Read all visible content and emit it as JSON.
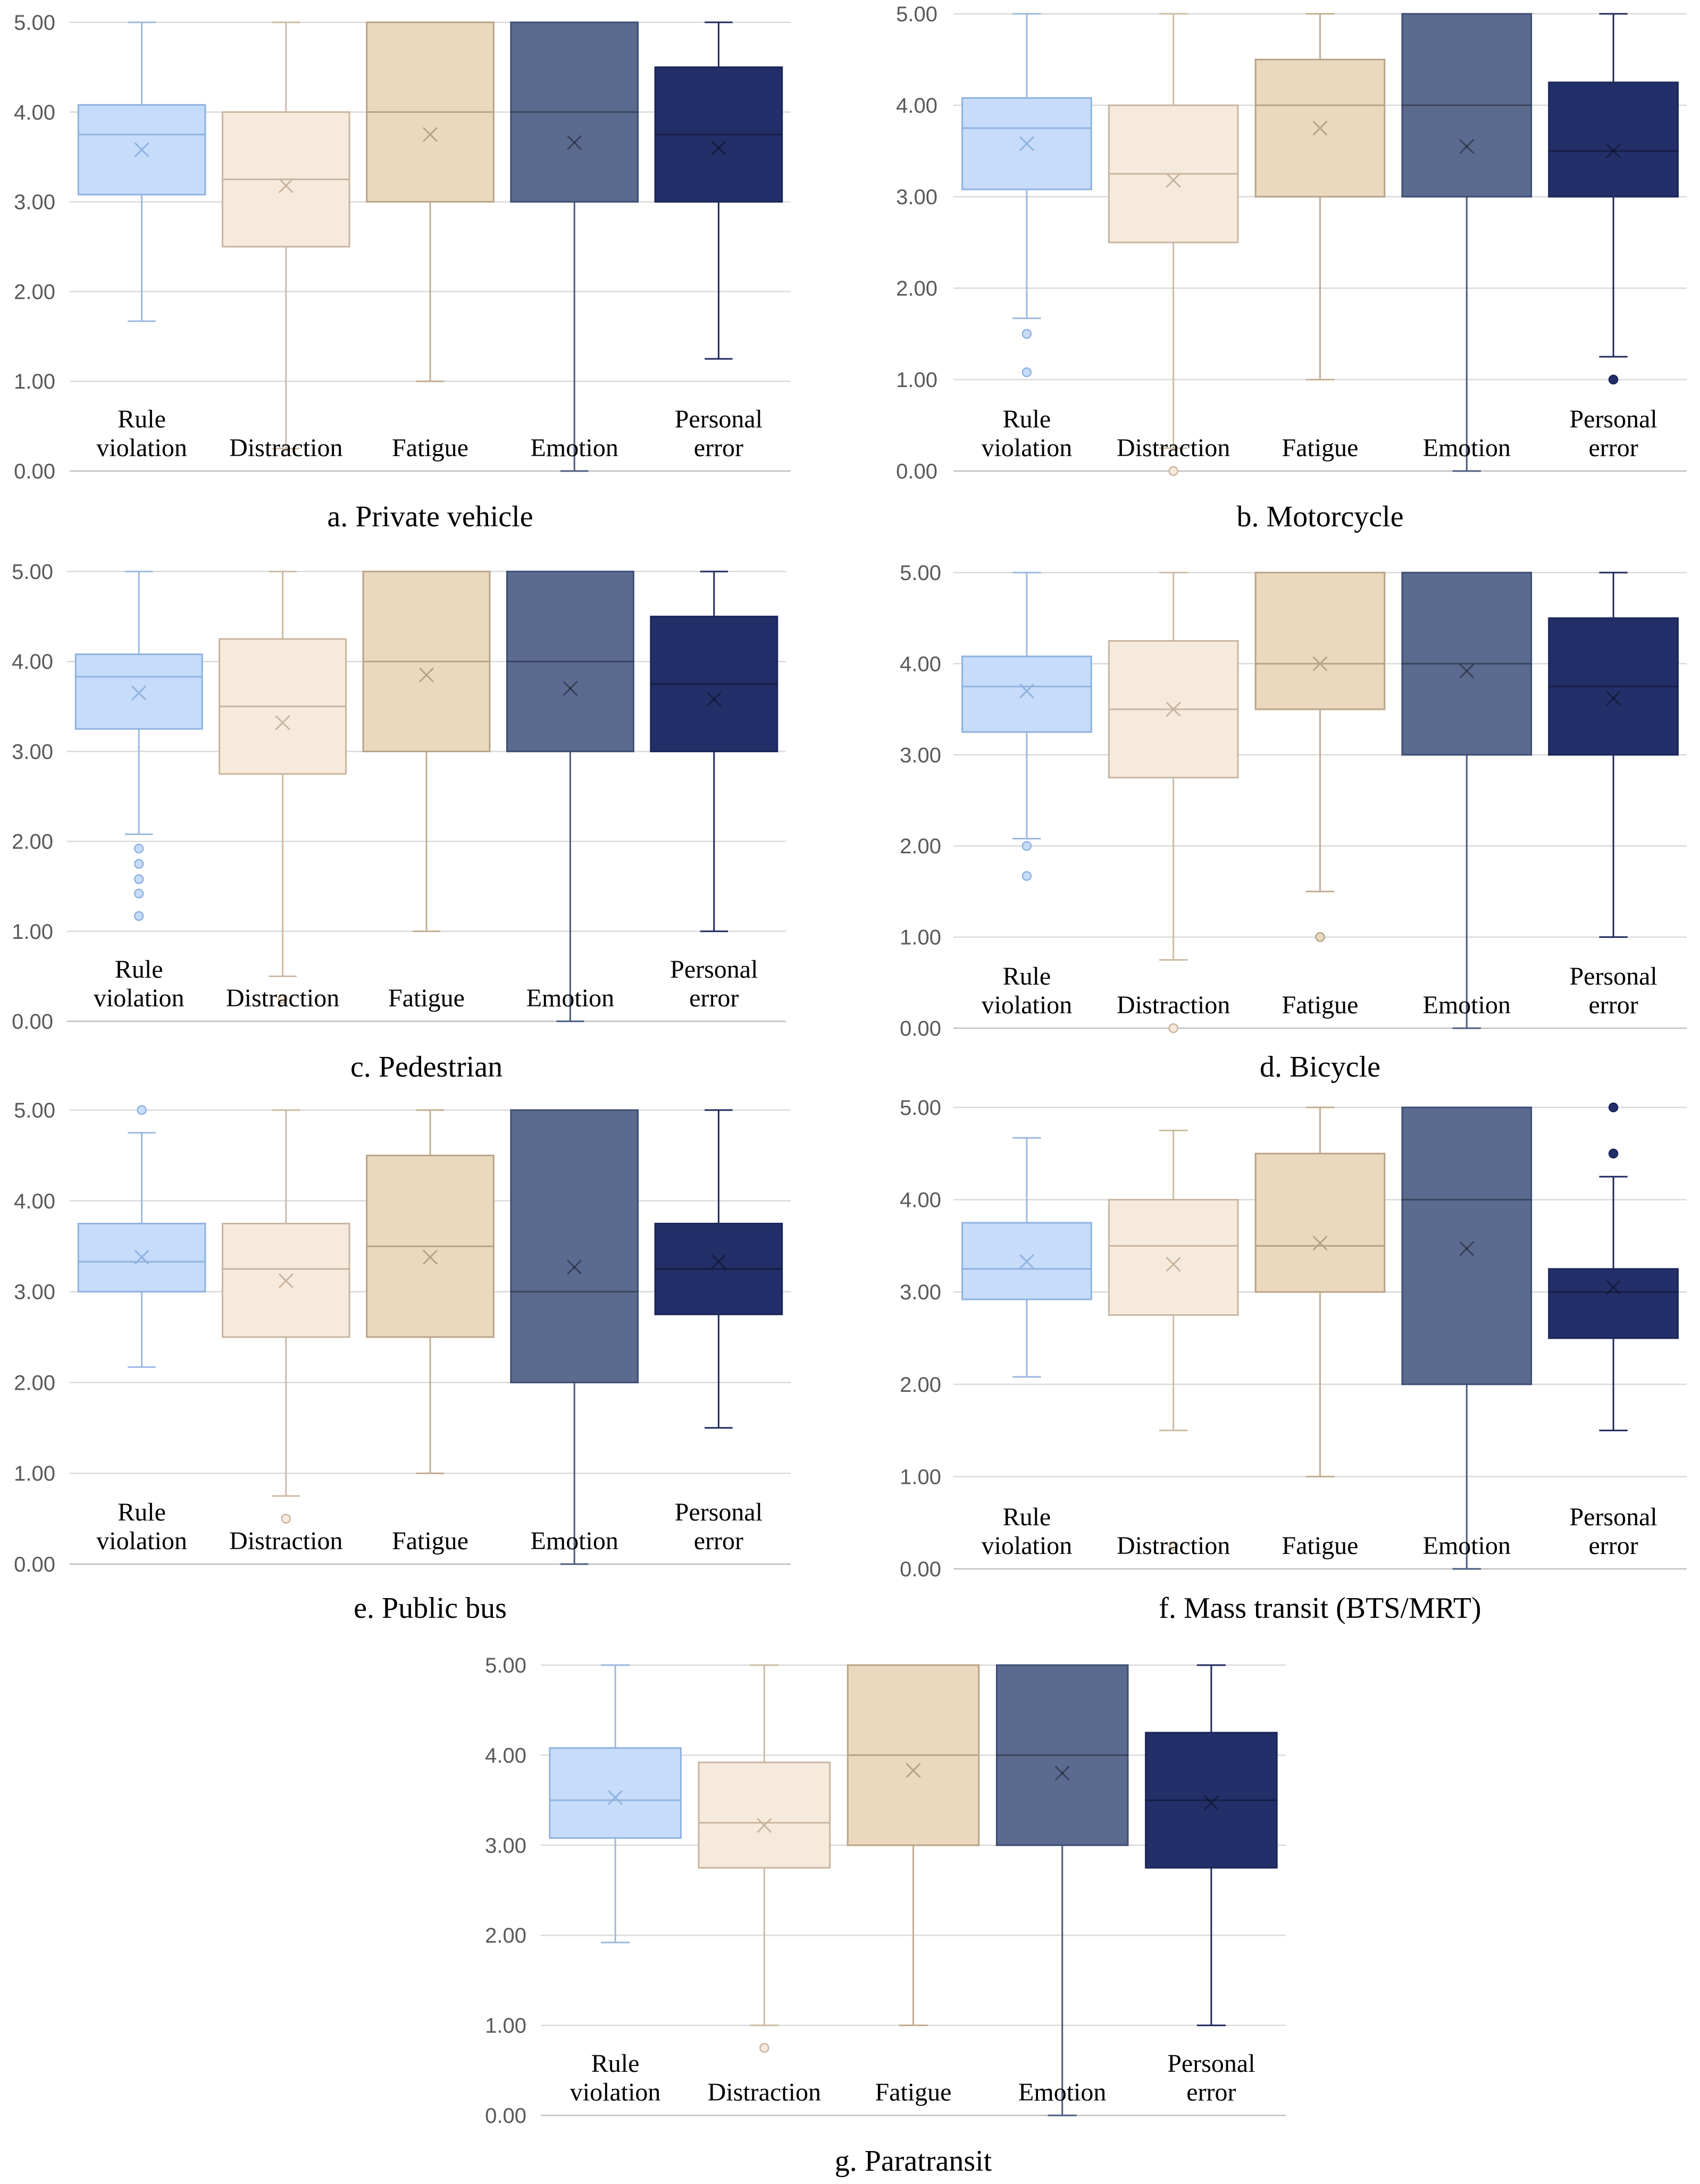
{
  "figure": {
    "categories": [
      "Rule violation",
      "Distraction",
      "Fatigue",
      "Emotion",
      "Personal error"
    ],
    "category_lines": [
      [
        "Rule",
        "violation"
      ],
      [
        "Distraction"
      ],
      [
        "Fatigue"
      ],
      [
        "Emotion"
      ],
      [
        "Personal",
        "error"
      ]
    ],
    "colors": {
      "fill": [
        "#c6dcfa",
        "#f6eadc",
        "#ead9bf",
        "#5b6a8f",
        "#232f69"
      ],
      "stroke": [
        "#8fb2e0",
        "#c9b59f",
        "#b8a386",
        "#3e4d73",
        "#1b2657"
      ],
      "whisker": [
        "#9bb8e0",
        "#cdbba5",
        "#c2ad90",
        "#4a5a80",
        "#1f2a5e"
      ]
    }
  },
  "chart_data": [
    {
      "type": "box",
      "title": "a. Private vehicle",
      "ylim": [
        0,
        5
      ],
      "yticks": [
        "0.00",
        "1.00",
        "2.00",
        "3.00",
        "4.00",
        "5.00"
      ],
      "grid": true,
      "categories": [
        "Rule violation",
        "Distraction",
        "Fatigue",
        "Emotion",
        "Personal error"
      ],
      "boxes": [
        {
          "min": 1.67,
          "q1": 3.08,
          "median": 3.75,
          "q3": 4.08,
          "max": 5.0,
          "mean": 3.58,
          "outliers": []
        },
        {
          "min": 0.25,
          "q1": 2.5,
          "median": 3.25,
          "q3": 4.0,
          "max": 5.0,
          "mean": 3.18,
          "outliers": []
        },
        {
          "min": 1.0,
          "q1": 3.0,
          "median": 4.0,
          "q3": 5.0,
          "max": 5.0,
          "mean": 3.75,
          "outliers": []
        },
        {
          "min": 0.0,
          "q1": 3.0,
          "median": 4.0,
          "q3": 5.0,
          "max": 5.0,
          "mean": 3.66,
          "outliers": []
        },
        {
          "min": 1.25,
          "q1": 3.0,
          "median": 3.75,
          "q3": 4.5,
          "max": 5.0,
          "mean": 3.6,
          "outliers": []
        }
      ]
    },
    {
      "type": "box",
      "title": "b. Motorcycle",
      "ylim": [
        0,
        5
      ],
      "yticks": [
        "0.00",
        "1.00",
        "2.00",
        "3.00",
        "4.00",
        "5.00"
      ],
      "grid": true,
      "categories": [
        "Rule violation",
        "Distraction",
        "Fatigue",
        "Emotion",
        "Personal error"
      ],
      "boxes": [
        {
          "min": 1.67,
          "q1": 3.08,
          "median": 3.75,
          "q3": 4.08,
          "max": 5.0,
          "mean": 3.58,
          "outliers": [
            1.5,
            1.08
          ]
        },
        {
          "min": 0.25,
          "q1": 2.5,
          "median": 3.25,
          "q3": 4.0,
          "max": 5.0,
          "mean": 3.18,
          "outliers": [
            0.0
          ]
        },
        {
          "min": 1.0,
          "q1": 3.0,
          "median": 4.0,
          "q3": 4.5,
          "max": 5.0,
          "mean": 3.75,
          "outliers": []
        },
        {
          "min": 0.0,
          "q1": 3.0,
          "median": 4.0,
          "q3": 5.0,
          "max": 5.0,
          "mean": 3.55,
          "outliers": []
        },
        {
          "min": 1.25,
          "q1": 3.0,
          "median": 3.5,
          "q3": 4.25,
          "max": 5.0,
          "mean": 3.5,
          "outliers": [
            1.0
          ]
        }
      ]
    },
    {
      "type": "box",
      "title": "c. Pedestrian",
      "ylim": [
        0,
        5
      ],
      "yticks": [
        "0.00",
        "1.00",
        "2.00",
        "3.00",
        "4.00",
        "5.00"
      ],
      "grid": true,
      "categories": [
        "Rule violation",
        "Distraction",
        "Fatigue",
        "Emotion",
        "Personal error"
      ],
      "boxes": [
        {
          "min": 2.08,
          "q1": 3.25,
          "median": 3.83,
          "q3": 4.08,
          "max": 5.0,
          "mean": 3.65,
          "outliers": [
            1.92,
            1.75,
            1.58,
            1.42,
            1.17
          ]
        },
        {
          "min": 0.5,
          "q1": 2.75,
          "median": 3.5,
          "q3": 4.25,
          "max": 5.0,
          "mean": 3.32,
          "outliers": [
            0.25
          ]
        },
        {
          "min": 1.0,
          "q1": 3.0,
          "median": 4.0,
          "q3": 5.0,
          "max": 5.0,
          "mean": 3.85,
          "outliers": []
        },
        {
          "min": 0.0,
          "q1": 3.0,
          "median": 4.0,
          "q3": 5.0,
          "max": 5.0,
          "mean": 3.7,
          "outliers": []
        },
        {
          "min": 1.0,
          "q1": 3.0,
          "median": 3.75,
          "q3": 4.5,
          "max": 5.0,
          "mean": 3.58,
          "outliers": []
        }
      ]
    },
    {
      "type": "box",
      "title": "d. Bicycle",
      "ylim": [
        0,
        5
      ],
      "yticks": [
        "0.00",
        "1.00",
        "2.00",
        "3.00",
        "4.00",
        "5.00"
      ],
      "grid": true,
      "categories": [
        "Rule violation",
        "Distraction",
        "Fatigue",
        "Emotion",
        "Personal error"
      ],
      "boxes": [
        {
          "min": 2.08,
          "q1": 3.25,
          "median": 3.75,
          "q3": 4.08,
          "max": 5.0,
          "mean": 3.7,
          "outliers": [
            2.0,
            1.67
          ]
        },
        {
          "min": 0.75,
          "q1": 2.75,
          "median": 3.5,
          "q3": 4.25,
          "max": 5.0,
          "mean": 3.5,
          "outliers": [
            0.0
          ]
        },
        {
          "min": 1.5,
          "q1": 3.5,
          "median": 4.0,
          "q3": 5.0,
          "max": 5.0,
          "mean": 4.0,
          "outliers": [
            1.0
          ]
        },
        {
          "min": 0.0,
          "q1": 3.0,
          "median": 4.0,
          "q3": 5.0,
          "max": 5.0,
          "mean": 3.92,
          "outliers": []
        },
        {
          "min": 1.0,
          "q1": 3.0,
          "median": 3.75,
          "q3": 4.5,
          "max": 5.0,
          "mean": 3.62,
          "outliers": []
        }
      ]
    },
    {
      "type": "box",
      "title": "e. Public bus",
      "ylim": [
        0,
        5
      ],
      "yticks": [
        "0.00",
        "1.00",
        "2.00",
        "3.00",
        "4.00",
        "5.00"
      ],
      "grid": true,
      "categories": [
        "Rule violation",
        "Distraction",
        "Fatigue",
        "Emotion",
        "Personal error"
      ],
      "boxes": [
        {
          "min": 2.17,
          "q1": 3.0,
          "median": 3.33,
          "q3": 3.75,
          "max": 4.75,
          "mean": 3.38,
          "outliers": [
            5.0
          ]
        },
        {
          "min": 0.75,
          "q1": 2.5,
          "median": 3.25,
          "q3": 3.75,
          "max": 5.0,
          "mean": 3.12,
          "outliers": [
            0.5
          ]
        },
        {
          "min": 1.0,
          "q1": 2.5,
          "median": 3.5,
          "q3": 4.5,
          "max": 5.0,
          "mean": 3.38,
          "outliers": []
        },
        {
          "min": 0.0,
          "q1": 2.0,
          "median": 3.0,
          "q3": 5.0,
          "max": 5.0,
          "mean": 3.27,
          "outliers": []
        },
        {
          "min": 1.5,
          "q1": 2.75,
          "median": 3.25,
          "q3": 3.75,
          "max": 5.0,
          "mean": 3.33,
          "outliers": []
        }
      ]
    },
    {
      "type": "box",
      "title": "f. Mass transit (BTS/MRT)",
      "ylim": [
        0,
        5
      ],
      "yticks": [
        "0.00",
        "1.00",
        "2.00",
        "3.00",
        "4.00",
        "5.00"
      ],
      "grid": true,
      "categories": [
        "Rule violation",
        "Distraction",
        "Fatigue",
        "Emotion",
        "Personal error"
      ],
      "boxes": [
        {
          "min": 2.08,
          "q1": 2.92,
          "median": 3.25,
          "q3": 3.75,
          "max": 4.67,
          "mean": 3.33,
          "outliers": []
        },
        {
          "min": 1.5,
          "q1": 2.75,
          "median": 3.5,
          "q3": 4.0,
          "max": 4.75,
          "mean": 3.3,
          "outliers": [
            0.25
          ]
        },
        {
          "min": 1.0,
          "q1": 3.0,
          "median": 3.5,
          "q3": 4.5,
          "max": 5.0,
          "mean": 3.53,
          "outliers": []
        },
        {
          "min": 0.0,
          "q1": 2.0,
          "median": 4.0,
          "q3": 5.0,
          "max": 5.0,
          "mean": 3.47,
          "outliers": []
        },
        {
          "min": 1.5,
          "q1": 2.5,
          "median": 3.0,
          "q3": 3.25,
          "max": 4.25,
          "mean": 3.05,
          "outliers": [
            5.0,
            4.5
          ]
        }
      ]
    },
    {
      "type": "box",
      "title": "g. Paratransit",
      "ylim": [
        0,
        5
      ],
      "yticks": [
        "0.00",
        "1.00",
        "2.00",
        "3.00",
        "4.00",
        "5.00"
      ],
      "grid": true,
      "categories": [
        "Rule violation",
        "Distraction",
        "Fatigue",
        "Emotion",
        "Personal error"
      ],
      "boxes": [
        {
          "min": 1.92,
          "q1": 3.08,
          "median": 3.5,
          "q3": 4.08,
          "max": 5.0,
          "mean": 3.53,
          "outliers": []
        },
        {
          "min": 1.0,
          "q1": 2.75,
          "median": 3.25,
          "q3": 3.92,
          "max": 5.0,
          "mean": 3.22,
          "outliers": [
            0.75
          ]
        },
        {
          "min": 1.0,
          "q1": 3.0,
          "median": 4.0,
          "q3": 5.0,
          "max": 5.0,
          "mean": 3.83,
          "outliers": []
        },
        {
          "min": 0.0,
          "q1": 3.0,
          "median": 4.0,
          "q3": 5.0,
          "max": 5.0,
          "mean": 3.8,
          "outliers": []
        },
        {
          "min": 1.0,
          "q1": 2.75,
          "median": 3.5,
          "q3": 4.25,
          "max": 5.0,
          "mean": 3.47,
          "outliers": []
        }
      ]
    }
  ]
}
